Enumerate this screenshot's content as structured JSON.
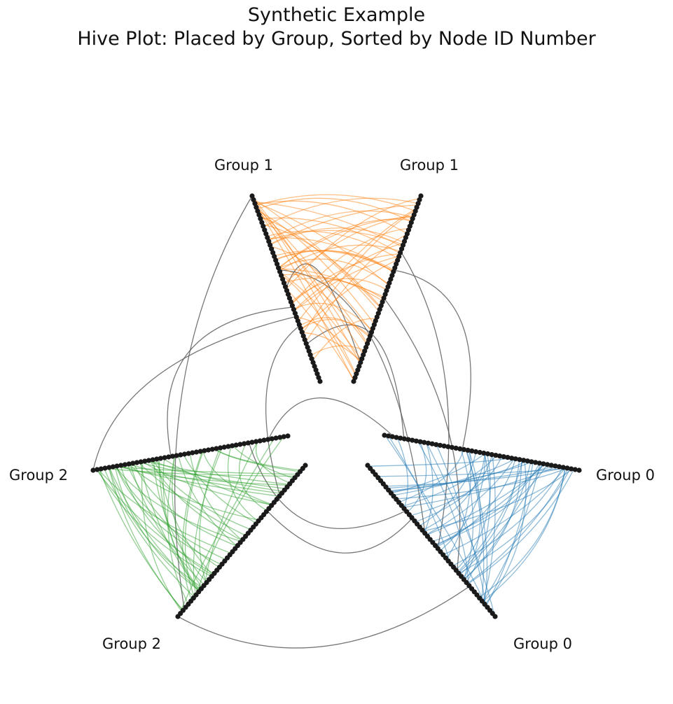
{
  "title": "Synthetic Example",
  "subtitle": "Hive Plot: Placed by Group, Sorted by Node ID Number",
  "axes": [
    {
      "label": "Group 0",
      "group": 0
    },
    {
      "label": "Group 0",
      "group": 0
    },
    {
      "label": "Group 1",
      "group": 1
    },
    {
      "label": "Group 1",
      "group": 1
    },
    {
      "label": "Group 2",
      "group": 2
    },
    {
      "label": "Group 2",
      "group": 2
    }
  ],
  "nodes_per_axis": 50,
  "colors": {
    "group0": "#1f77b4",
    "group1": "#ff7f0e",
    "group2": "#2ca02c",
    "between_groups": "#555555",
    "node": "#1a1a1a"
  }
}
